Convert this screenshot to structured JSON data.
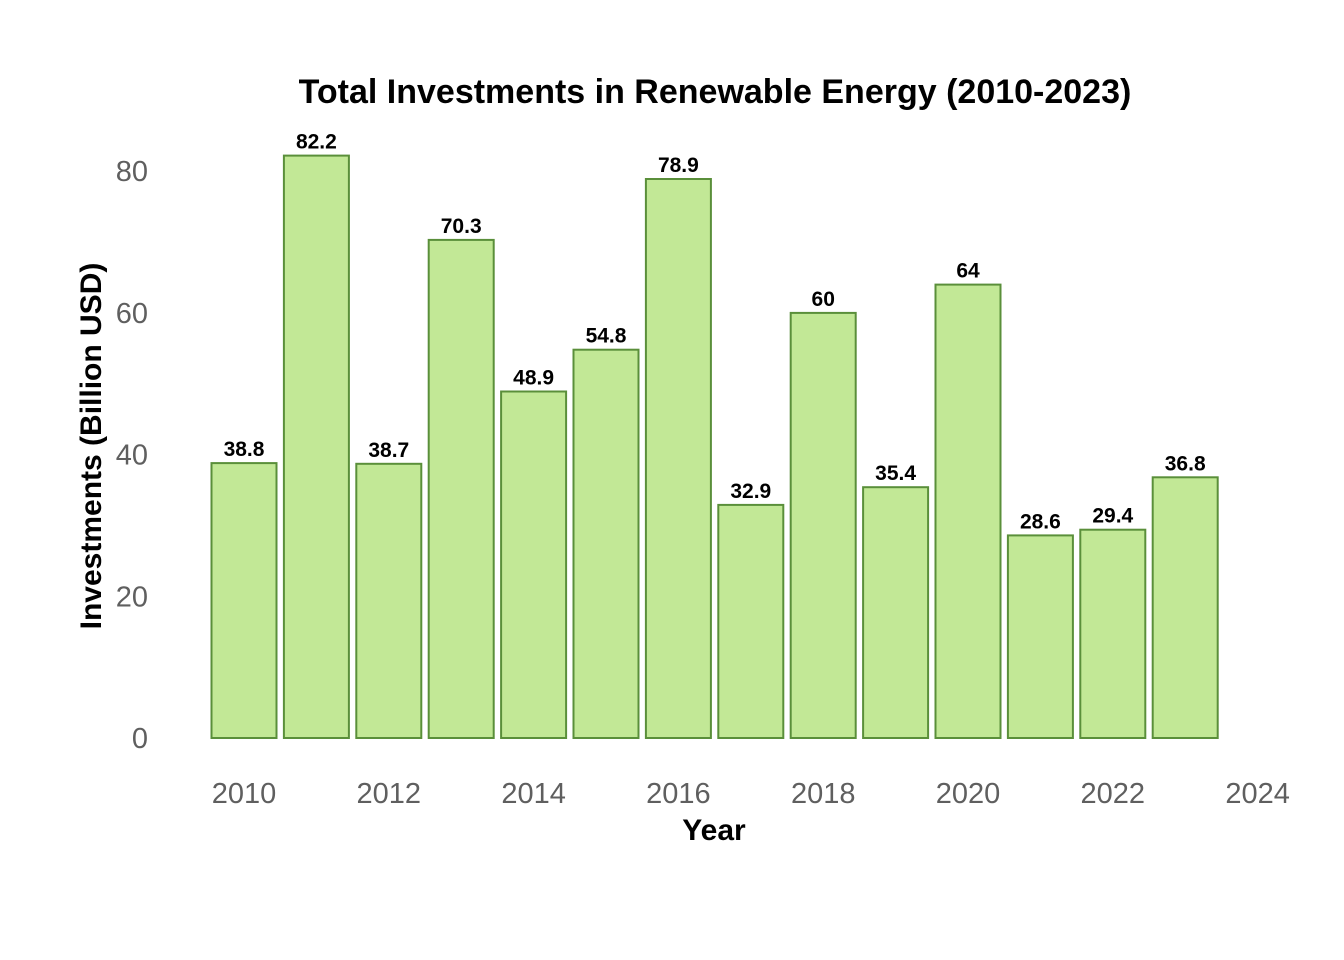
{
  "chart_data": {
    "type": "bar",
    "title": "Total Investments in Renewable Energy (2010-2023)",
    "xlabel": "Year",
    "ylabel": "Investments (Billion USD)",
    "x": [
      2010,
      2011,
      2012,
      2013,
      2014,
      2015,
      2016,
      2017,
      2018,
      2019,
      2020,
      2021,
      2022,
      2023
    ],
    "values": [
      38.8,
      82.2,
      38.7,
      70.3,
      48.9,
      54.8,
      78.9,
      32.9,
      60,
      35.4,
      64,
      28.6,
      29.4,
      36.8
    ],
    "data_labels": [
      "38.8",
      "82.2",
      "38.7",
      "70.3",
      "48.9",
      "54.8",
      "78.9",
      "32.9",
      "60",
      "35.4",
      "64",
      "28.6",
      "29.4",
      "36.8"
    ],
    "xlim": [
      2010,
      2024
    ],
    "ylim": [
      0,
      85
    ],
    "x_ticks": [
      2010,
      2012,
      2014,
      2016,
      2018,
      2020,
      2022,
      2024
    ],
    "y_ticks": [
      0,
      20,
      40,
      60,
      80
    ],
    "grid": false,
    "legend": "none",
    "colors": {
      "bar_fill": "#c2e896",
      "bar_stroke": "#5a8f3a"
    }
  }
}
